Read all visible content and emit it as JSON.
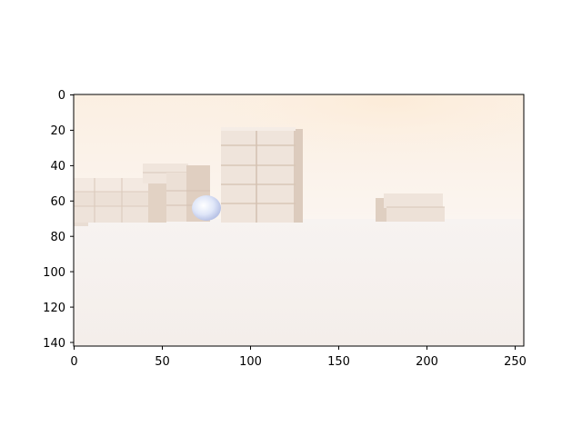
{
  "figure": {
    "description_free": true,
    "x_ticks": [
      "0",
      "50",
      "100",
      "150",
      "200",
      "250"
    ],
    "y_ticks": [
      "0",
      "20",
      "40",
      "60",
      "80",
      "100",
      "120",
      "140"
    ],
    "x_range": [
      0,
      256
    ],
    "y_range": [
      0,
      144
    ],
    "y_inverted": true,
    "colors": {
      "sky": "#fbf2e8",
      "ground": "#f6f1ee",
      "box_light": "#efe4db",
      "box_shadow": "#d9c7b8",
      "sphere": "#dfe5f7"
    }
  }
}
